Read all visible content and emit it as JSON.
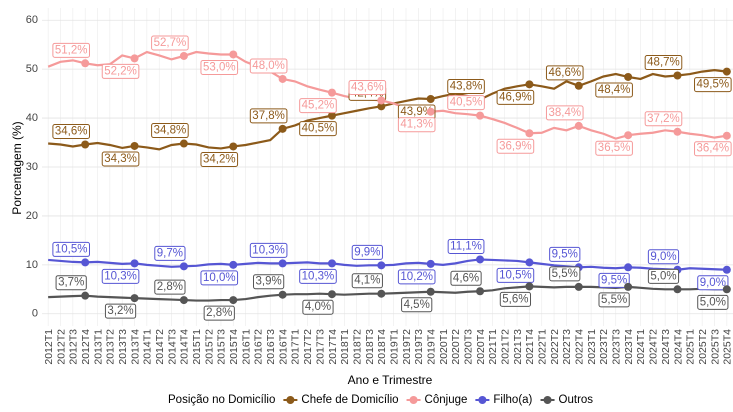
{
  "chart_data": {
    "type": "line",
    "x_label": "Ano e Trimestre",
    "y_label": "Porcentagem (%)",
    "legend_title": "Posição no Domicílio",
    "legend_position": "bottom",
    "grid": true,
    "ylim": [
      -2.5,
      62.5
    ],
    "yticks": [
      0,
      10,
      20,
      30,
      40,
      50,
      60
    ],
    "categories": [
      "2012T1",
      "2012T2",
      "2012T3",
      "2012T4",
      "2013T1",
      "2013T2",
      "2013T3",
      "2013T4",
      "2014T1",
      "2014T2",
      "2014T3",
      "2014T4",
      "2015T1",
      "2015T2",
      "2015T3",
      "2015T4",
      "2016T1",
      "2016T2",
      "2016T3",
      "2016T4",
      "2017T1",
      "2017T2",
      "2017T3",
      "2017T4",
      "2018T1",
      "2018T2",
      "2018T3",
      "2018T4",
      "2019T1",
      "2019T2",
      "2019T3",
      "2019T4",
      "2020T1",
      "2020T2",
      "2020T3",
      "2020T4",
      "2021T1",
      "2021T2",
      "2021T3",
      "2021T4",
      "2022T1",
      "2022T2",
      "2022T3",
      "2022T4",
      "2023T1",
      "2023T2",
      "2023T3",
      "2023T4",
      "2024T1",
      "2024T2",
      "2024T3",
      "2024T4",
      "2025T1",
      "2025T2",
      "2025T3",
      "2025T4"
    ],
    "series": [
      {
        "name": "Chefe de Domicílio",
        "color": "#8c5a1a",
        "values": [
          34.8,
          34.6,
          34.2,
          34.6,
          34.9,
          34.5,
          33.9,
          34.3,
          34.0,
          33.6,
          34.5,
          34.8,
          34.6,
          34.0,
          33.8,
          34.2,
          34.5,
          35.0,
          35.5,
          37.8,
          38.5,
          39.5,
          40.0,
          40.5,
          41.0,
          41.5,
          42.0,
          42.4,
          43.0,
          43.5,
          44.0,
          43.9,
          44.5,
          45.0,
          44.5,
          43.8,
          45.0,
          46.0,
          46.5,
          46.9,
          46.5,
          46.0,
          47.5,
          46.6,
          47.5,
          48.5,
          49.0,
          48.4,
          48.0,
          49.0,
          48.5,
          48.7,
          49.0,
          49.5,
          49.8,
          49.5
        ],
        "value_labels": [
          null,
          null,
          null,
          "34,6%",
          null,
          null,
          null,
          "34,3%",
          null,
          null,
          null,
          "34,8%",
          null,
          null,
          null,
          "34,2%",
          null,
          null,
          null,
          "37,8%",
          null,
          null,
          null,
          "40,5%",
          null,
          null,
          null,
          "42,4%",
          null,
          null,
          null,
          "43,9%",
          null,
          null,
          null,
          "43,8%",
          null,
          null,
          null,
          "46,9%",
          null,
          null,
          null,
          "46,6%",
          null,
          null,
          null,
          "48,4%",
          null,
          null,
          null,
          "48,7%",
          null,
          null,
          null,
          "49,5%"
        ]
      },
      {
        "name": "Cônjuge",
        "color": "#f59a9a",
        "values": [
          50.5,
          51.5,
          51.8,
          51.2,
          50.8,
          51.0,
          52.8,
          52.2,
          53.5,
          52.8,
          52.0,
          52.7,
          53.5,
          53.2,
          53.0,
          53.0,
          51.5,
          50.5,
          49.5,
          48.0,
          47.5,
          46.5,
          45.8,
          45.2,
          44.5,
          44.0,
          43.8,
          43.6,
          43.0,
          42.0,
          41.5,
          41.3,
          41.5,
          41.0,
          40.8,
          40.5,
          39.8,
          39.0,
          38.0,
          36.9,
          37.0,
          38.0,
          37.5,
          38.4,
          37.5,
          36.8,
          35.8,
          36.5,
          36.8,
          37.0,
          37.5,
          37.2,
          36.8,
          36.5,
          36.0,
          36.4
        ],
        "value_labels": [
          null,
          null,
          null,
          "51,2%",
          null,
          null,
          null,
          "52,2%",
          null,
          null,
          null,
          "52,7%",
          null,
          null,
          null,
          "53,0%",
          null,
          null,
          null,
          "48,0%",
          null,
          null,
          null,
          "45,2%",
          null,
          null,
          null,
          "43,6%",
          null,
          null,
          null,
          "41,3%",
          null,
          null,
          null,
          "40,5%",
          null,
          null,
          null,
          "36,9%",
          null,
          null,
          null,
          "38,4%",
          null,
          null,
          null,
          "36,5%",
          null,
          null,
          null,
          "37,2%",
          null,
          null,
          null,
          "36,4%"
        ]
      },
      {
        "name": "Filho(a)",
        "color": "#5656d4",
        "values": [
          11.0,
          10.8,
          10.6,
          10.5,
          10.6,
          10.4,
          10.2,
          10.3,
          10.0,
          9.8,
          9.6,
          9.7,
          9.8,
          10.1,
          10.2,
          10.0,
          10.2,
          10.4,
          10.3,
          10.3,
          10.4,
          10.5,
          10.3,
          10.3,
          10.0,
          9.8,
          9.9,
          9.9,
          10.0,
          10.3,
          10.4,
          10.2,
          10.0,
          10.3,
          10.8,
          11.1,
          11.0,
          10.9,
          10.8,
          10.5,
          10.2,
          9.9,
          9.7,
          9.5,
          9.6,
          9.4,
          9.3,
          9.5,
          9.4,
          9.2,
          9.1,
          9.0,
          9.3,
          9.2,
          9.1,
          9.0
        ],
        "value_labels": [
          null,
          null,
          null,
          "10,5%",
          null,
          null,
          null,
          "10,3%",
          null,
          null,
          null,
          "9,7%",
          null,
          null,
          null,
          "10,0%",
          null,
          null,
          null,
          "10,3%",
          null,
          null,
          null,
          "10,3%",
          null,
          null,
          null,
          "9,9%",
          null,
          null,
          null,
          "10,2%",
          null,
          null,
          null,
          "11,1%",
          null,
          null,
          null,
          "10,5%",
          null,
          null,
          null,
          "9,5%",
          null,
          null,
          null,
          "9,5%",
          null,
          null,
          null,
          "9,0%",
          null,
          null,
          null,
          "9,0%"
        ]
      },
      {
        "name": "Outros",
        "color": "#555555",
        "values": [
          3.4,
          3.5,
          3.6,
          3.7,
          3.5,
          3.4,
          3.3,
          3.2,
          3.1,
          3.0,
          2.9,
          2.8,
          2.7,
          2.7,
          2.8,
          2.8,
          3.0,
          3.4,
          3.7,
          3.9,
          4.0,
          4.0,
          4.1,
          4.0,
          3.9,
          4.0,
          4.1,
          4.1,
          4.2,
          4.3,
          4.4,
          4.5,
          4.4,
          4.3,
          4.5,
          4.6,
          4.8,
          5.2,
          5.4,
          5.6,
          5.5,
          5.4,
          5.5,
          5.5,
          5.5,
          5.4,
          5.3,
          5.5,
          5.3,
          5.1,
          5.0,
          5.0,
          5.0,
          5.1,
          5.0,
          5.0
        ],
        "value_labels": [
          null,
          null,
          null,
          "3,7%",
          null,
          null,
          null,
          "3,2%",
          null,
          null,
          null,
          "2,8%",
          null,
          null,
          null,
          "2,8%",
          null,
          null,
          null,
          "3,9%",
          null,
          null,
          null,
          "4,0%",
          null,
          null,
          null,
          "4,1%",
          null,
          null,
          null,
          "4,5%",
          null,
          null,
          null,
          "4,6%",
          null,
          null,
          null,
          "5,6%",
          null,
          null,
          null,
          "5,5%",
          null,
          null,
          null,
          "5,5%",
          null,
          null,
          null,
          "5,0%",
          null,
          null,
          null,
          "5,0%"
        ]
      }
    ]
  }
}
